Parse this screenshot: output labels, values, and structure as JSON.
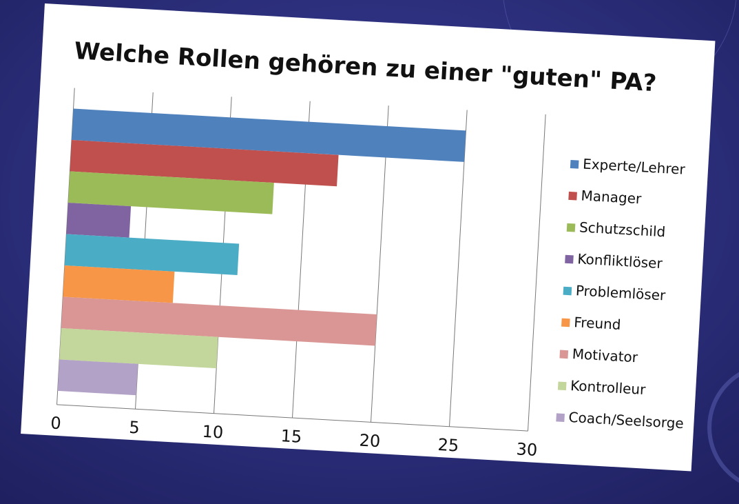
{
  "chart_data": {
    "type": "hbar",
    "title": "Welche Rollen gehören zu einer \"guten\" PA?",
    "series": [
      {
        "name": "Experte/Lehrer",
        "color": "#4F81BD",
        "values": [
          25
        ]
      },
      {
        "name": "Manager",
        "color": "#C0504D",
        "values": [
          17
        ]
      },
      {
        "name": "Schutzschild",
        "color": "#9BBB59",
        "values": [
          13
        ]
      },
      {
        "name": "Konfliktlöser",
        "color": "#8064A2",
        "values": [
          4
        ]
      },
      {
        "name": "Problemlöser",
        "color": "#4BACC6",
        "values": [
          11
        ]
      },
      {
        "name": "Freund",
        "color": "#F79646",
        "values": [
          7
        ]
      },
      {
        "name": "Motivator",
        "color": "#D99694",
        "values": [
          20
        ]
      },
      {
        "name": "Kontrolleur",
        "color": "#C3D69B",
        "values": [
          10
        ]
      },
      {
        "name": "Coach/Seelsorge",
        "color": "#B3A2C7",
        "values": [
          5
        ]
      }
    ],
    "xlim": [
      0,
      30
    ],
    "xticks": [
      0,
      5,
      10,
      15,
      20,
      25,
      30
    ],
    "grid": true,
    "legend": "right"
  }
}
